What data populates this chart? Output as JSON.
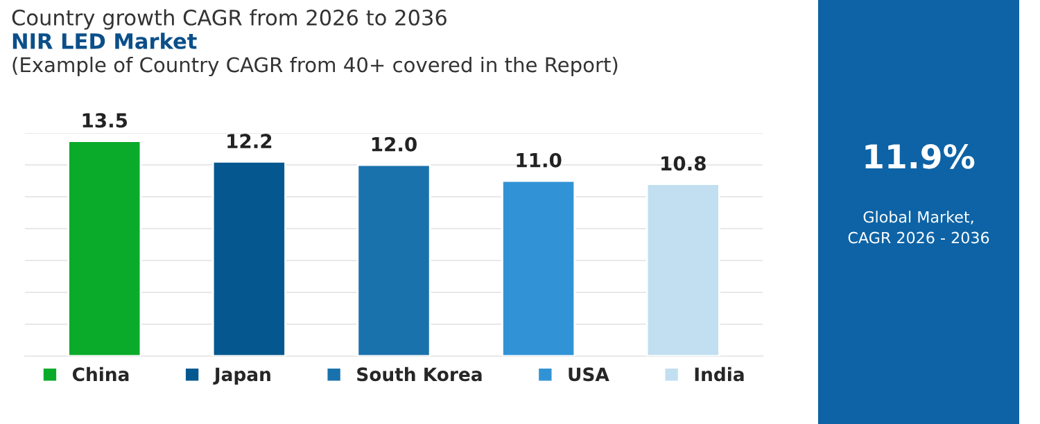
{
  "chart_data": [
    {
      "type": "bar",
      "title": "Country growth CAGR from 2026 to 2036",
      "subtitle": "NIR LED Market",
      "annotations": [
        "(Example of Country CAGR from 40+ covered in the Report)"
      ],
      "categories": [
        null,
        null,
        null,
        null,
        null
      ],
      "series": [
        {
          "name": "China",
          "color": "#0aab2a",
          "values": [
            13.5,
            null,
            null,
            null,
            null
          ],
          "value_labels": [
            "13.5",
            null,
            null,
            null,
            null
          ]
        },
        {
          "name": "Japan",
          "color": "#05588f",
          "values": [
            null,
            12.2,
            null,
            null,
            null
          ],
          "value_labels": [
            null,
            "12.2",
            null,
            null,
            null
          ]
        },
        {
          "name": "South Korea",
          "color": "#1a72ad",
          "values": [
            null,
            null,
            12.0,
            null,
            null
          ],
          "value_labels": [
            null,
            null,
            "12.0",
            null,
            null
          ]
        },
        {
          "name": "USA",
          "color": "#3193d6",
          "values": [
            null,
            null,
            null,
            11.0,
            null
          ],
          "value_labels": [
            null,
            null,
            null,
            "11.0",
            null
          ]
        },
        {
          "name": "India",
          "color": "#c1dff0",
          "values": [
            null,
            null,
            null,
            null,
            10.8
          ],
          "value_labels": [
            null,
            null,
            null,
            null,
            "10.8"
          ]
        }
      ],
      "ylim": [
        0,
        14
      ],
      "yticks": [
        {
          "value": 0,
          "label": null
        },
        {
          "value": 2,
          "label": null
        },
        {
          "value": 4,
          "label": null
        },
        {
          "value": 6,
          "label": null
        },
        {
          "value": 8,
          "label": null
        },
        {
          "value": 10,
          "label": null
        },
        {
          "value": 12,
          "label": null
        },
        {
          "value": 14,
          "label": null
        }
      ],
      "grid": "y",
      "legend": "bottom",
      "stacked": true
    },
    {
      "type": "other",
      "title": "11.9%",
      "annotations": [
        "Global Market,\nCAGR 2026 - 2036"
      ]
    }
  ]
}
